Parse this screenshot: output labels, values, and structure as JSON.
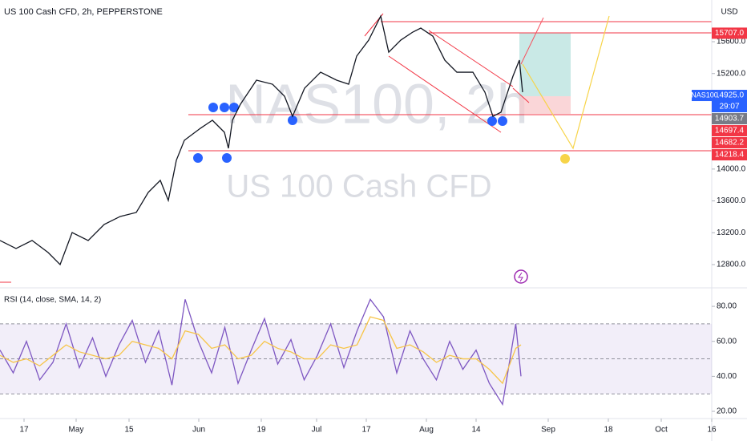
{
  "header": {
    "title": "US 100 Cash CFD, 2h, PEPPERSTONE",
    "currency": "USD"
  },
  "watermark": {
    "symbol": "NAS100, 2h",
    "name": "US 100 Cash CFD"
  },
  "chart_data": [
    {
      "type": "line",
      "xlim": [
        0,
        88.8
      ],
      "ylim": [
        12528,
        16124
      ],
      "yticks": [
        {
          "value": 12800,
          "label": "12800.0"
        },
        {
          "value": 13200,
          "label": "13200.0"
        },
        {
          "value": 13600,
          "label": "13600.0"
        },
        {
          "value": 14000,
          "label": "14000.0"
        },
        {
          "value": 14800,
          "label": "14800.0"
        },
        {
          "value": 15200,
          "label": "15200.0"
        },
        {
          "value": 15600,
          "label": "15600.0"
        }
      ],
      "x": [
        0,
        2,
        4,
        6,
        7.5,
        9,
        11,
        13,
        15,
        17,
        18.5,
        20,
        21,
        22,
        23,
        25,
        26.5,
        28,
        28.5,
        29,
        30,
        32,
        34,
        35.5,
        36.5,
        38,
        40,
        42,
        43.5,
        44.5,
        46,
        47.5,
        48.5,
        50,
        51.5,
        52.5,
        54,
        55.5,
        57,
        59,
        60.5,
        61.5,
        62.5,
        64,
        64.8,
        65.2
      ],
      "series": [
        {
          "name": "NAS100",
          "color": "#131722",
          "values": [
            13103,
            13002,
            13103,
            12952,
            12800,
            13203,
            13103,
            13304,
            13405,
            13455,
            13707,
            13858,
            13606,
            14110,
            14361,
            14512,
            14613,
            14462,
            14261,
            14613,
            14815,
            15117,
            15066,
            14915,
            14663,
            15016,
            15217,
            15117,
            15066,
            15419,
            15620,
            15922,
            15469,
            15620,
            15721,
            15771,
            15670,
            15368,
            15217,
            15217,
            14966,
            14663,
            14714,
            15167,
            15368,
            14966
          ]
        }
      ],
      "price_badges": [
        {
          "value": 15707,
          "label": "15707.0",
          "color": "#f23645"
        },
        {
          "value": 14925,
          "label": "14925.0",
          "color": "#2962ff"
        },
        {
          "value": 14903.7,
          "label": "14903.7",
          "color": "#787b86"
        },
        {
          "value": 14697.4,
          "label": "14697.4",
          "color": "#f23645"
        },
        {
          "value": 14682.2,
          "label": "14682.2",
          "color": "#f23645"
        },
        {
          "value": 14218.4,
          "label": "14218.4",
          "color": "#f23645"
        }
      ],
      "countdown": "29:07"
    },
    {
      "type": "line",
      "title": "RSI (14, close, SMA, 14, 2)",
      "ylim": [
        16.8,
        89.2
      ],
      "yticks": [
        {
          "value": 20,
          "label": "20.00"
        },
        {
          "value": 40,
          "label": "40.00"
        },
        {
          "value": 60,
          "label": "60.00"
        },
        {
          "value": 80,
          "label": "80.00"
        }
      ],
      "bands": [
        30,
        50,
        70
      ],
      "x": [
        0,
        1.65,
        3.3,
        4.95,
        6.6,
        8.25,
        9.9,
        11.55,
        13.2,
        14.85,
        16.5,
        18.15,
        19.8,
        21.45,
        23.1,
        24.75,
        26.4,
        28.05,
        29.7,
        31.35,
        33,
        34.65,
        36.3,
        37.95,
        39.6,
        41.25,
        42.9,
        44.55,
        46.2,
        47.85,
        49.5,
        51.15,
        52.8,
        54.45,
        56.1,
        57.75,
        59.4,
        61.05,
        62.7,
        64.35,
        65
      ],
      "series": [
        {
          "color": "#7e57c2",
          "values": [
            55,
            42,
            60,
            38,
            48,
            70,
            45,
            62,
            40,
            58,
            72,
            48,
            66,
            35,
            84,
            60,
            42,
            68,
            36,
            55,
            73,
            47,
            61,
            38,
            52,
            70,
            45,
            66,
            84,
            74,
            42,
            66,
            50,
            38,
            60,
            44,
            55,
            36,
            24,
            70,
            40
          ]
        },
        {
          "color": "#f7c548",
          "values": [
            52,
            48,
            50,
            46,
            52,
            58,
            54,
            52,
            50,
            52,
            60,
            58,
            56,
            50,
            66,
            64,
            56,
            58,
            50,
            52,
            60,
            56,
            54,
            50,
            50,
            58,
            56,
            58,
            74,
            72,
            56,
            58,
            54,
            48,
            52,
            50,
            50,
            44,
            36,
            56,
            58
          ]
        }
      ]
    }
  ],
  "xaxis": {
    "ticks": [
      {
        "value": 3,
        "label": "17"
      },
      {
        "value": 9.5,
        "label": "May"
      },
      {
        "value": 16.1,
        "label": "15"
      },
      {
        "value": 24.8,
        "label": "Jun"
      },
      {
        "value": 32.6,
        "label": "19"
      },
      {
        "value": 39.5,
        "label": "Jul"
      },
      {
        "value": 45.7,
        "label": "17"
      },
      {
        "value": 53.2,
        "label": "Aug"
      },
      {
        "value": 59.4,
        "label": "14"
      },
      {
        "value": 68.4,
        "label": "Sep"
      },
      {
        "value": 75.9,
        "label": "18"
      },
      {
        "value": 82.5,
        "label": "Oct"
      },
      {
        "value": 88.8,
        "label": "16"
      }
    ]
  }
}
